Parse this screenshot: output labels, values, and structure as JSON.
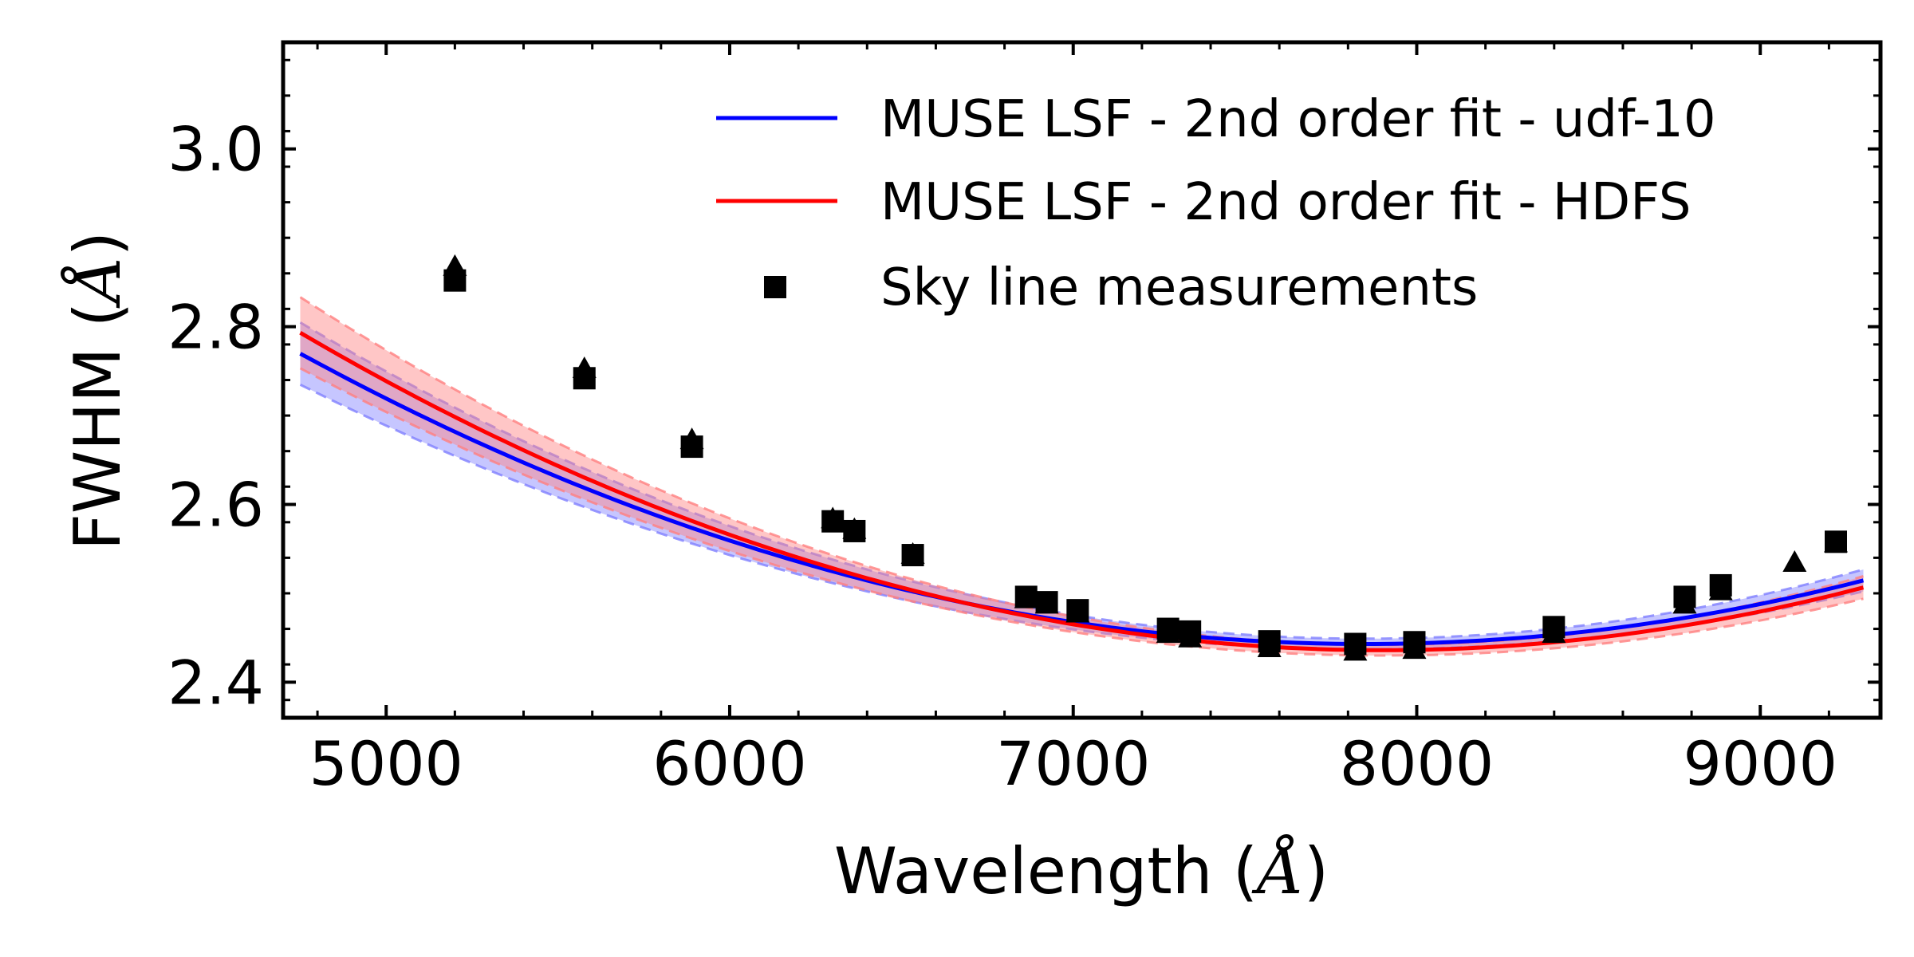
{
  "chart_data": {
    "type": "line",
    "title": "",
    "xlabel": "Wavelength (",
    "xlabel_unit": "Å",
    "ylabel": "FWHM (",
    "ylabel_unit": "Å",
    "xlim": [
      4700,
      9350
    ],
    "ylim": [
      2.36,
      3.12
    ],
    "x_ticks": [
      5000,
      6000,
      7000,
      8000,
      9000
    ],
    "x_tick_labels": [
      "5000",
      "6000",
      "7000",
      "8000",
      "9000"
    ],
    "y_ticks": [
      2.4,
      2.6,
      2.8,
      3.0
    ],
    "y_tick_labels": [
      "2.4",
      "2.6",
      "2.8",
      "3.0"
    ],
    "grid": false,
    "legend_position": "top-right",
    "series": [
      {
        "name": "MUSE LSF - 2nd order fit - udf-10",
        "color": "#0000ff",
        "band_color": "#8080ff",
        "fit": {
          "vertex_x": 7850,
          "vertex_y": 2.443,
          "coef": 3.4e-08
        },
        "x_range": [
          4750,
          9300
        ],
        "band_halfwidth": {
          "at_vertex": 0.006,
          "at_edge": 0.035
        }
      },
      {
        "name": "MUSE LSF - 2nd order fit - HDFS",
        "color": "#ff0000",
        "band_color": "#ff8080",
        "fit": {
          "vertex_x": 7900,
          "vertex_y": 2.436,
          "coef": 3.6e-08
        },
        "x_range": [
          4750,
          9300
        ],
        "band_halfwidth": {
          "at_vertex": 0.006,
          "at_edge": 0.04
        }
      }
    ],
    "markers_legend_label": "Sky line measurements",
    "squares": {
      "x": [
        5200,
        5577,
        5890,
        6300,
        6363,
        6533,
        6863,
        6923,
        7013,
        7276,
        7340,
        7571,
        7821,
        7993,
        8399,
        8780,
        8885,
        9220
      ],
      "y": [
        2.852,
        2.742,
        2.665,
        2.581,
        2.57,
        2.543,
        2.496,
        2.49,
        2.481,
        2.46,
        2.457,
        2.446,
        2.443,
        2.445,
        2.462,
        2.496,
        2.509,
        2.558
      ]
    },
    "triangles": {
      "x": [
        5200,
        5577,
        5890,
        6300,
        6363,
        6533,
        6863,
        6923,
        7013,
        7276,
        7340,
        7571,
        7821,
        7993,
        8399,
        8780,
        8885,
        9100,
        9220
      ],
      "y": [
        2.868,
        2.753,
        2.673,
        2.584,
        2.572,
        2.544,
        2.494,
        2.488,
        2.478,
        2.455,
        2.45,
        2.439,
        2.435,
        2.437,
        2.455,
        2.488,
        2.503,
        2.535,
        2.557
      ]
    }
  }
}
